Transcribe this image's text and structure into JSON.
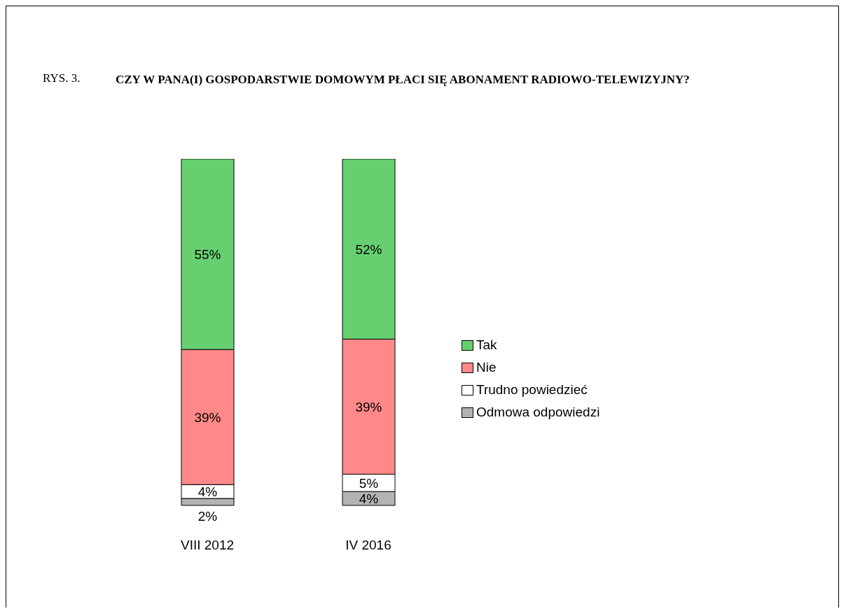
{
  "chart_data": {
    "type": "bar",
    "stacked": true,
    "subtitle": "RYS. 3.",
    "title": "CZY W PANA(I) GOSPODARSTWIE DOMOWYM PŁACI SIĘ ABONAMENT RADIOWO-TELEWIZYJNY?",
    "categories": [
      "VIII 2012",
      "IV 2016"
    ],
    "legend": "right",
    "series": [
      {
        "name": "Odmowa odpowiedzi",
        "color": "#b3b3b3",
        "values": [
          2,
          4
        ],
        "value_labels": [
          "2%",
          "4%"
        ]
      },
      {
        "name": "Trudno powiedzieć",
        "color": "#ffffff",
        "values": [
          4,
          5
        ],
        "value_labels": [
          "4%",
          "5%"
        ]
      },
      {
        "name": "Nie",
        "color": "#ff8888",
        "values": [
          39,
          39
        ],
        "value_labels": [
          "39%",
          "39%"
        ]
      },
      {
        "name": "Tak",
        "color": "#66d071",
        "values": [
          55,
          52
        ],
        "value_labels": [
          "55%",
          "52%"
        ]
      }
    ]
  }
}
